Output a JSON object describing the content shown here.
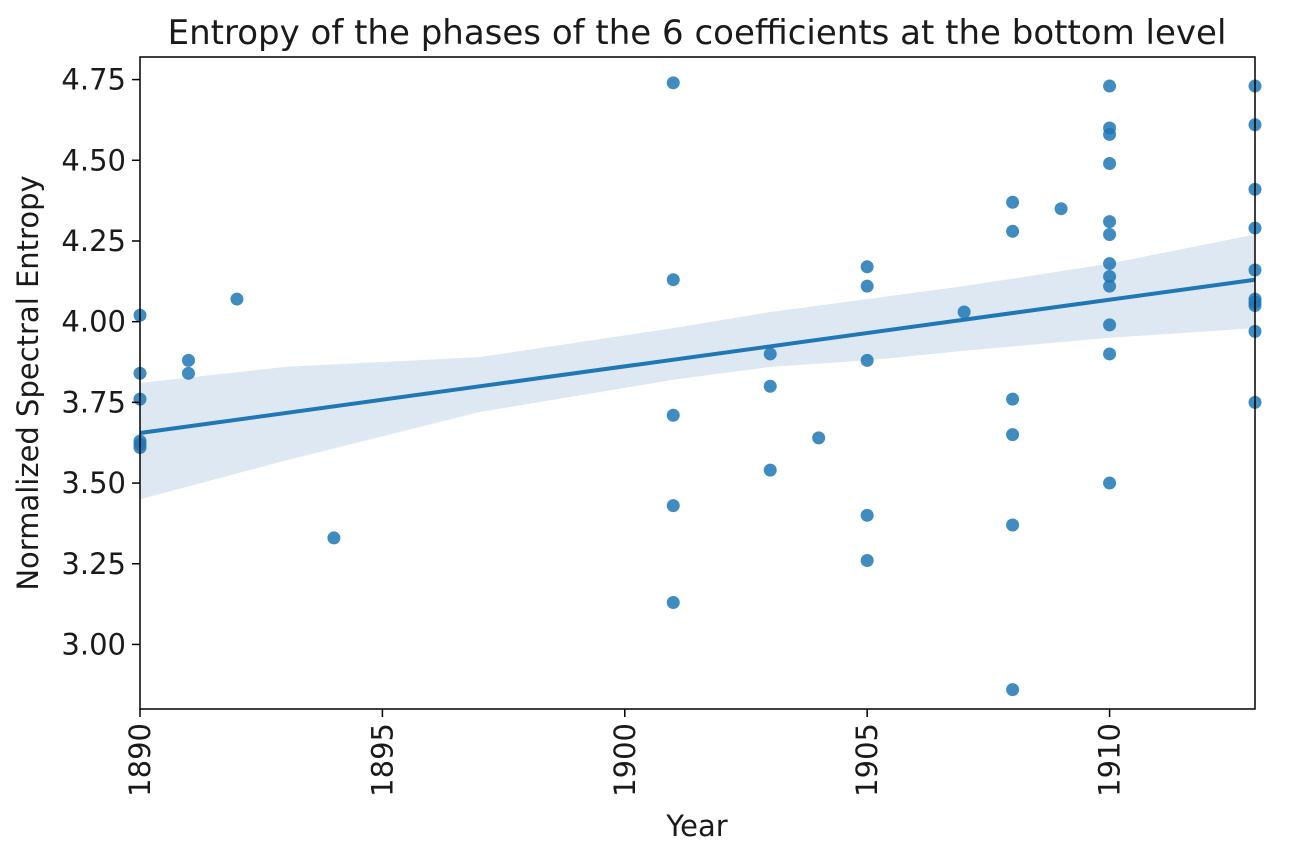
{
  "chart_data": {
    "type": "scatter",
    "title": "Entropy of the phases of the 6 coefficients at the bottom level",
    "xlabel": "Year",
    "ylabel": "Normalized Spectral Entropy",
    "xlim": [
      1890,
      1913
    ],
    "ylim": [
      2.8,
      4.82
    ],
    "x_ticks": [
      "1890",
      "1895",
      "1900",
      "1905",
      "1910"
    ],
    "y_ticks": [
      "3.00",
      "3.25",
      "3.50",
      "3.75",
      "4.00",
      "4.25",
      "4.50",
      "4.75"
    ],
    "x_tick_rotation": "vertical",
    "grid": false,
    "legend": "none",
    "point_color": "#1f77b4",
    "line_color": "#1f77b4",
    "band_color": "#dde8f3",
    "points": [
      {
        "x": 1890,
        "y": 4.02
      },
      {
        "x": 1890,
        "y": 3.84
      },
      {
        "x": 1890,
        "y": 3.76
      },
      {
        "x": 1890,
        "y": 3.63
      },
      {
        "x": 1890,
        "y": 3.62
      },
      {
        "x": 1890,
        "y": 3.61
      },
      {
        "x": 1891,
        "y": 3.88
      },
      {
        "x": 1891,
        "y": 3.84
      },
      {
        "x": 1892,
        "y": 4.07
      },
      {
        "x": 1894,
        "y": 3.33
      },
      {
        "x": 1901,
        "y": 4.74
      },
      {
        "x": 1901,
        "y": 4.13
      },
      {
        "x": 1901,
        "y": 3.71
      },
      {
        "x": 1901,
        "y": 3.43
      },
      {
        "x": 1901,
        "y": 3.13
      },
      {
        "x": 1903,
        "y": 3.9
      },
      {
        "x": 1903,
        "y": 3.8
      },
      {
        "x": 1903,
        "y": 3.54
      },
      {
        "x": 1904,
        "y": 3.64
      },
      {
        "x": 1905,
        "y": 4.17
      },
      {
        "x": 1905,
        "y": 4.11
      },
      {
        "x": 1905,
        "y": 3.88
      },
      {
        "x": 1905,
        "y": 3.4
      },
      {
        "x": 1905,
        "y": 3.26
      },
      {
        "x": 1907,
        "y": 4.03
      },
      {
        "x": 1908,
        "y": 4.37
      },
      {
        "x": 1908,
        "y": 4.28
      },
      {
        "x": 1908,
        "y": 3.76
      },
      {
        "x": 1908,
        "y": 3.65
      },
      {
        "x": 1908,
        "y": 3.37
      },
      {
        "x": 1908,
        "y": 2.86
      },
      {
        "x": 1909,
        "y": 4.35
      },
      {
        "x": 1910,
        "y": 4.73
      },
      {
        "x": 1910,
        "y": 4.6
      },
      {
        "x": 1910,
        "y": 4.58
      },
      {
        "x": 1910,
        "y": 4.49
      },
      {
        "x": 1910,
        "y": 4.31
      },
      {
        "x": 1910,
        "y": 4.27
      },
      {
        "x": 1910,
        "y": 4.18
      },
      {
        "x": 1910,
        "y": 4.14
      },
      {
        "x": 1910,
        "y": 4.11
      },
      {
        "x": 1910,
        "y": 3.99
      },
      {
        "x": 1910,
        "y": 3.9
      },
      {
        "x": 1910,
        "y": 3.5
      },
      {
        "x": 1913,
        "y": 4.73
      },
      {
        "x": 1913,
        "y": 4.61
      },
      {
        "x": 1913,
        "y": 4.41
      },
      {
        "x": 1913,
        "y": 4.29
      },
      {
        "x": 1913,
        "y": 4.16
      },
      {
        "x": 1913,
        "y": 4.07
      },
      {
        "x": 1913,
        "y": 4.06
      },
      {
        "x": 1913,
        "y": 4.05
      },
      {
        "x": 1913,
        "y": 3.97
      },
      {
        "x": 1913,
        "y": 3.75
      }
    ],
    "regression": {
      "x": [
        1890,
        1913
      ],
      "y": [
        3.655,
        4.13
      ]
    },
    "confidence_band": {
      "x": [
        1890,
        1893,
        1897,
        1901,
        1903,
        1905,
        1907,
        1910,
        1913
      ],
      "upper": [
        3.81,
        3.86,
        3.89,
        3.98,
        4.03,
        4.07,
        4.11,
        4.18,
        4.27
      ],
      "lower": [
        3.45,
        3.57,
        3.72,
        3.82,
        3.86,
        3.88,
        3.91,
        3.95,
        3.98
      ]
    }
  }
}
